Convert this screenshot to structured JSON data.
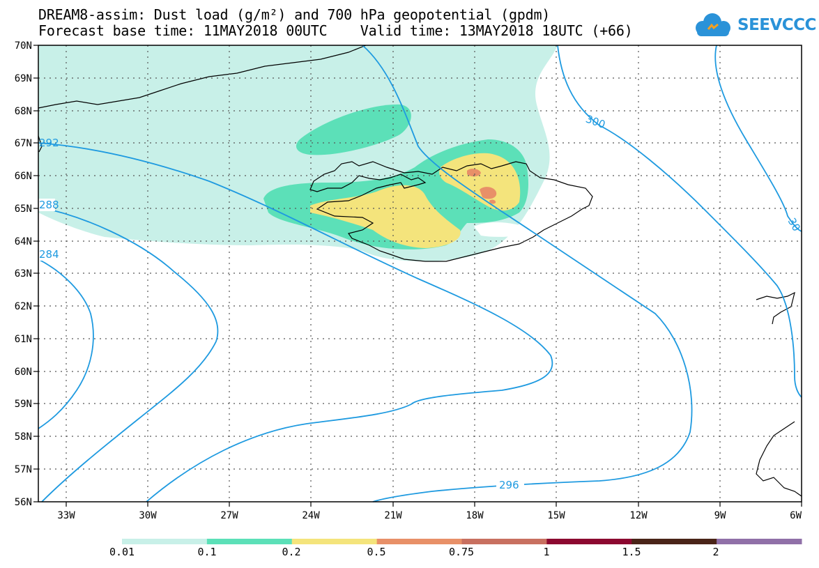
{
  "header": {
    "title_line1": "DREAM8-assim: Dust load (g/m²) and 700 hPa geopotential (gpdm)",
    "title_line2": "Forecast base time: 11MAY2018 00UTC    Valid time: 13MAY2018 18UTC (+66)",
    "logo_text": "SEEVCCC"
  },
  "map": {
    "lat_labels": [
      "70N",
      "69N",
      "68N",
      "67N",
      "66N",
      "65N",
      "64N",
      "63N",
      "62N",
      "61N",
      "60N",
      "59N",
      "58N",
      "57N",
      "56N"
    ],
    "lon_labels": [
      "33W",
      "30W",
      "27W",
      "24W",
      "21W",
      "18W",
      "15W",
      "12W",
      "9W",
      "6W"
    ],
    "contour_labels": [
      "300",
      "296",
      "288",
      "284",
      "292",
      "30"
    ]
  },
  "colorbar": {
    "colors": [
      "#c8f0e8",
      "#5ce0b8",
      "#f4e47c",
      "#e89068",
      "#c87060",
      "#8c0830",
      "#4a2418",
      "#9070a8"
    ],
    "labels": [
      "0.01",
      "0.1",
      "0.2",
      "0.5",
      "0.75",
      "1",
      "1.5",
      "2"
    ]
  }
}
